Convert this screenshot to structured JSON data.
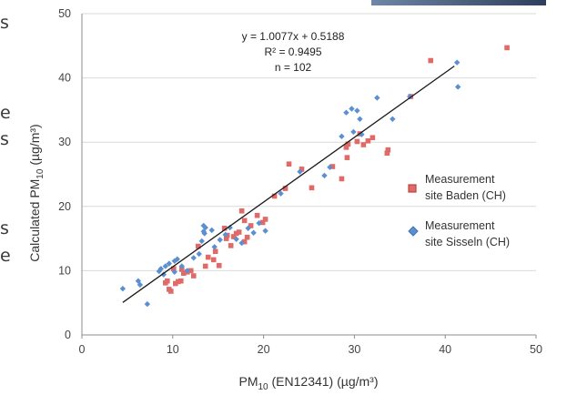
{
  "chart_data": {
    "type": "scatter",
    "xlabel_base": "PM",
    "xlabel_sub": "10",
    "xlabel_rest": " (EN12341) (µg/m³)",
    "ylabel_base": "Calculated PM",
    "ylabel_sub": "10",
    "ylabel_rest": "  (µg/m³)",
    "xlim": [
      0,
      50
    ],
    "ylim": [
      0,
      50
    ],
    "xticks": [
      0,
      10,
      20,
      30,
      40,
      50
    ],
    "yticks": [
      0,
      10,
      20,
      30,
      40,
      50
    ],
    "grid": "horizontal",
    "legend_position": "right",
    "annotation": [
      "y = 1.0077x + 0.5188",
      "R² = 0.9495",
      "n = 102"
    ],
    "regression": {
      "slope": 1.0077,
      "intercept": 0.5188,
      "x_range": [
        4.5,
        41
      ]
    },
    "series": [
      {
        "name_lines": [
          "Measurement",
          "site  Baden (CH)"
        ],
        "marker": "square",
        "color": "#e06a68",
        "stroke": "#b84544",
        "points": [
          [
            46.8,
            44.7
          ],
          [
            38.4,
            42.7
          ],
          [
            36.2,
            37.1
          ],
          [
            33.6,
            28.3
          ],
          [
            33.7,
            28.8
          ],
          [
            32.0,
            30.7
          ],
          [
            31.5,
            30.2
          ],
          [
            31.0,
            29.6
          ],
          [
            30.6,
            31.3
          ],
          [
            30.3,
            30.1
          ],
          [
            29.3,
            29.7
          ],
          [
            29.1,
            29.2
          ],
          [
            29.2,
            27.6
          ],
          [
            28.6,
            24.3
          ],
          [
            27.6,
            26.2
          ],
          [
            25.3,
            22.9
          ],
          [
            24.2,
            25.8
          ],
          [
            22.8,
            26.6
          ],
          [
            22.4,
            22.8
          ],
          [
            21.2,
            21.6
          ],
          [
            20.2,
            18.0
          ],
          [
            19.9,
            17.5
          ],
          [
            19.3,
            18.6
          ],
          [
            18.6,
            17.0
          ],
          [
            17.9,
            17.8
          ],
          [
            17.6,
            19.3
          ],
          [
            17.3,
            16.0
          ],
          [
            17.0,
            15.8
          ],
          [
            16.7,
            15.3
          ],
          [
            16.4,
            13.9
          ],
          [
            16.0,
            15.5
          ],
          [
            15.7,
            16.6
          ],
          [
            15.1,
            10.8
          ],
          [
            14.7,
            13.0
          ],
          [
            14.5,
            11.7
          ],
          [
            13.9,
            12.1
          ],
          [
            13.6,
            10.7
          ],
          [
            12.8,
            13.8
          ],
          [
            12.3,
            9.2
          ],
          [
            12.0,
            10.0
          ],
          [
            11.6,
            9.8
          ],
          [
            11.2,
            9.6
          ],
          [
            10.9,
            8.4
          ],
          [
            10.6,
            8.3
          ],
          [
            10.3,
            8.0
          ],
          [
            10.1,
            10.3
          ],
          [
            9.8,
            6.8
          ],
          [
            9.6,
            7.1
          ],
          [
            9.4,
            8.4
          ],
          [
            9.2,
            8.1
          ],
          [
            11.0,
            10.2
          ],
          [
            15.9,
            15.0
          ],
          [
            17.9,
            14.5
          ],
          [
            18.2,
            15.2
          ]
        ]
      },
      {
        "name_lines": [
          "Measurement",
          "site  Sisseln (CH)"
        ],
        "marker": "diamond",
        "color": "#5b8fd0",
        "stroke": "#3f72b3",
        "points": [
          [
            41.3,
            42.4
          ],
          [
            41.4,
            38.6
          ],
          [
            36.1,
            37.1
          ],
          [
            34.2,
            33.6
          ],
          [
            32.5,
            36.9
          ],
          [
            30.8,
            31.2
          ],
          [
            30.3,
            34.9
          ],
          [
            29.7,
            35.2
          ],
          [
            29.1,
            34.6
          ],
          [
            29.9,
            31.6
          ],
          [
            30.6,
            33.6
          ],
          [
            28.6,
            30.9
          ],
          [
            27.3,
            26.1
          ],
          [
            26.7,
            24.8
          ],
          [
            24.0,
            25.4
          ],
          [
            21.9,
            22.0
          ],
          [
            20.2,
            16.2
          ],
          [
            19.5,
            17.4
          ],
          [
            18.9,
            15.9
          ],
          [
            18.3,
            16.6
          ],
          [
            17.6,
            14.3
          ],
          [
            17.0,
            14.9
          ],
          [
            16.3,
            16.7
          ],
          [
            15.8,
            15.6
          ],
          [
            15.2,
            14.8
          ],
          [
            14.6,
            13.7
          ],
          [
            14.3,
            16.3
          ],
          [
            13.6,
            16.7
          ],
          [
            13.4,
            17.0
          ],
          [
            13.5,
            15.8
          ],
          [
            13.4,
            16.1
          ],
          [
            13.2,
            14.6
          ],
          [
            12.9,
            12.6
          ],
          [
            12.3,
            12.0
          ],
          [
            11.6,
            10.0
          ],
          [
            11.0,
            10.7
          ],
          [
            10.5,
            11.8
          ],
          [
            10.2,
            11.5
          ],
          [
            9.6,
            11.1
          ],
          [
            9.2,
            10.7
          ],
          [
            8.7,
            10.3
          ],
          [
            8.5,
            9.9
          ],
          [
            9.0,
            9.4
          ],
          [
            6.2,
            8.4
          ],
          [
            6.4,
            7.8
          ],
          [
            4.5,
            7.2
          ],
          [
            7.2,
            4.8
          ],
          [
            10.2,
            9.8
          ]
        ]
      }
    ]
  },
  "page_edge": {
    "chars": [
      "s",
      "e",
      "s",
      "s",
      "e"
    ],
    "band_color": "#4a5f80"
  }
}
